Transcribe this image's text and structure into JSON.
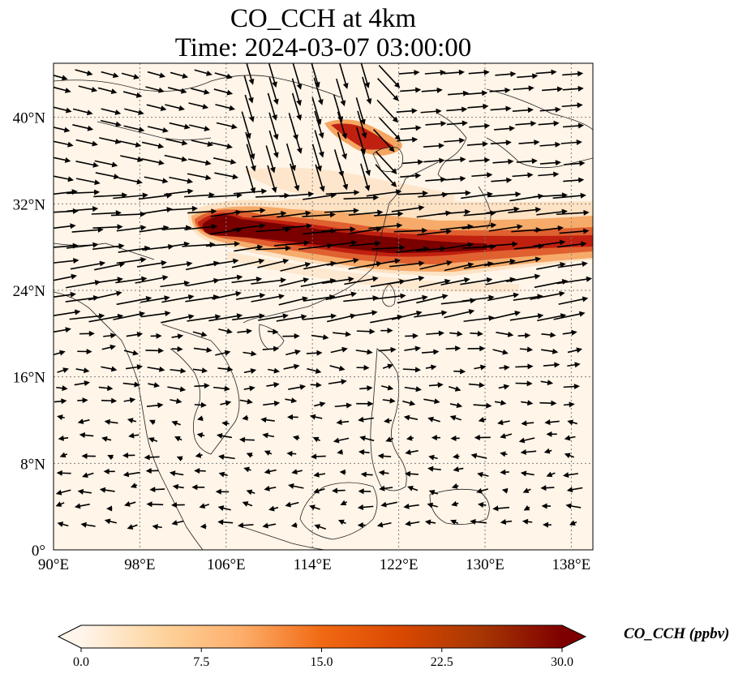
{
  "title": {
    "line1": "CO_CCH at 4km",
    "line2": "Time: 2024-03-07 03:00:00"
  },
  "map": {
    "type": "geographic contour map with wind vectors",
    "extent": {
      "lon": [
        90,
        140
      ],
      "lat": [
        0,
        45
      ]
    },
    "gridlines": "dotted gray",
    "x_ticks": [
      {
        "value": 90,
        "label": "90°E"
      },
      {
        "value": 98,
        "label": "98°E"
      },
      {
        "value": 106,
        "label": "106°E"
      },
      {
        "value": 114,
        "label": "114°E"
      },
      {
        "value": 122,
        "label": "122°E"
      },
      {
        "value": 130,
        "label": "130°E"
      },
      {
        "value": 138,
        "label": "138°E"
      }
    ],
    "y_ticks": [
      {
        "value": 0,
        "label": "0°"
      },
      {
        "value": 8,
        "label": "8°N"
      },
      {
        "value": 16,
        "label": "16°N"
      },
      {
        "value": 24,
        "label": "24°N"
      },
      {
        "value": 32,
        "label": "32°N"
      },
      {
        "value": 40,
        "label": "40°N"
      }
    ],
    "background_color": "#fff5e8",
    "plume_colors": [
      "#fde0c0",
      "#f5a560",
      "#e06030",
      "#c02010",
      "#7a0000"
    ],
    "coastline_color": "#222222",
    "vector_color": "#000000"
  },
  "colorbar": {
    "label": "CO_CCH (ppbv)",
    "min": 0.0,
    "max": 30.0,
    "extend": "both",
    "tick_labels": [
      "0.0",
      "7.5",
      "15.0",
      "22.5",
      "30.0"
    ],
    "stops": [
      "#fff5eb",
      "#fdd49e",
      "#fdae6b",
      "#f16913",
      "#d94801",
      "#a63603",
      "#7f0000"
    ]
  }
}
